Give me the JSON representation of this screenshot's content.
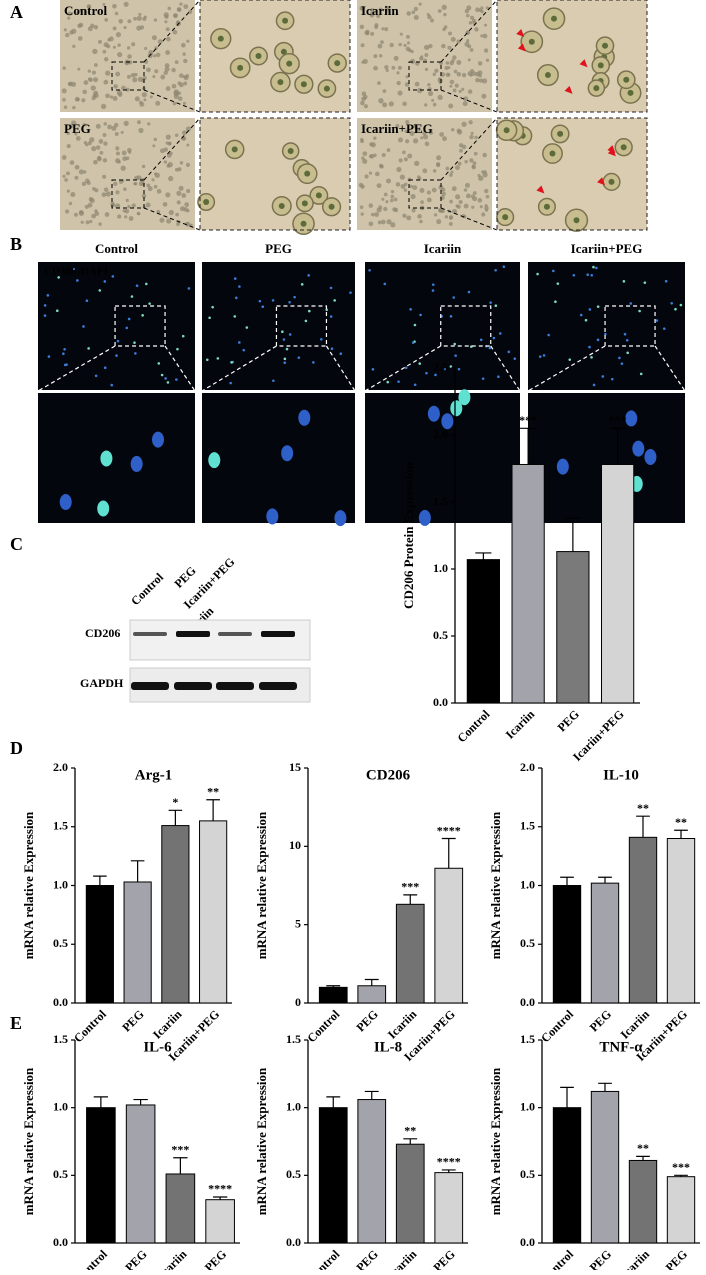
{
  "figure": {
    "panel_labels": [
      "A",
      "B",
      "C",
      "D",
      "E"
    ],
    "panel_a": {
      "labels": [
        "Control",
        "Icariin",
        "PEG",
        "Icariin+PEG"
      ]
    },
    "panel_b": {
      "titles": [
        "Control",
        "PEG",
        "Icariin",
        "Icariin+PEG"
      ],
      "stain": [
        "CD206",
        "/DAPI"
      ]
    },
    "panel_c": {
      "lanes": [
        "Control",
        "PEG",
        "Icariin",
        "Icariin+PEG"
      ],
      "bands": [
        "CD206",
        "GAPDH"
      ]
    }
  },
  "chart_data": [
    {
      "type": "bar",
      "ylabel": "CD206 Protein Expression",
      "categories": [
        "Control",
        "Icariin",
        "PEG",
        "Icariin+PEG"
      ],
      "values": [
        1.07,
        1.78,
        1.13,
        1.78
      ],
      "errors": [
        0.05,
        0.27,
        0.25,
        0.27
      ],
      "annotations": [
        null,
        "***",
        null,
        "***"
      ],
      "colors": [
        "#000000",
        "#a3a3ab",
        "#7a7a7a",
        "#d4d4d4"
      ],
      "ylim": [
        0,
        2.5
      ],
      "yticks": [
        {
          "value": 0,
          "label": "0.0"
        },
        0.5,
        {
          "value": 1,
          "label": "1.0"
        },
        1.5,
        {
          "value": 2,
          "label": "2.0"
        },
        2.5
      ]
    },
    {
      "type": "bar",
      "title": "Arg-1",
      "ylabel": "mRNA relative Expression",
      "categories": [
        "Control",
        "PEG",
        "Icariin",
        "Icariin+PEG"
      ],
      "values": [
        1.0,
        1.03,
        1.51,
        1.55
      ],
      "errors": [
        0.08,
        0.18,
        0.13,
        0.18
      ],
      "annotations": [
        null,
        null,
        "*",
        "**"
      ],
      "colors": [
        "#000000",
        "#a3a3ab",
        "#737373",
        "#d4d4d4"
      ],
      "ylim": [
        0,
        2
      ],
      "yticks": [
        {
          "value": 0,
          "label": "0.0"
        },
        0.5,
        {
          "value": 1,
          "label": "1.0"
        },
        1.5,
        {
          "value": 2,
          "label": "2.0"
        }
      ]
    },
    {
      "type": "bar",
      "title": "CD206",
      "ylabel": "mRNA relative Expression",
      "categories": [
        "Control",
        "PEG",
        "Icariin",
        "Icariin+PEG"
      ],
      "values": [
        1.0,
        1.1,
        6.3,
        8.6
      ],
      "errors": [
        0.1,
        0.4,
        0.6,
        1.9
      ],
      "annotations": [
        null,
        null,
        "***",
        "****"
      ],
      "colors": [
        "#000000",
        "#a3a3ab",
        "#737373",
        "#d4d4d4"
      ],
      "ylim": [
        0,
        15
      ],
      "yticks": [
        0,
        5,
        10,
        15
      ]
    },
    {
      "type": "bar",
      "title": "IL-10",
      "ylabel": "mRNA relative Expression",
      "categories": [
        "Control",
        "PEG",
        "Icariin",
        "Icariin+PEG"
      ],
      "values": [
        1.0,
        1.02,
        1.41,
        1.4
      ],
      "errors": [
        0.07,
        0.05,
        0.18,
        0.07
      ],
      "annotations": [
        null,
        null,
        "**",
        "**"
      ],
      "colors": [
        "#000000",
        "#a3a3ab",
        "#737373",
        "#d4d4d4"
      ],
      "ylim": [
        0,
        2
      ],
      "yticks": [
        {
          "value": 0,
          "label": "0.0"
        },
        0.5,
        {
          "value": 1,
          "label": "1.0"
        },
        1.5,
        {
          "value": 2,
          "label": "2.0"
        }
      ]
    },
    {
      "type": "bar",
      "title": "IL-6",
      "ylabel": "mRNA relative Expression",
      "categories": [
        "Control",
        "PEG",
        "Icariin",
        "Icariin+PEG"
      ],
      "values": [
        1.0,
        1.02,
        0.51,
        0.32
      ],
      "errors": [
        0.08,
        0.04,
        0.12,
        0.02
      ],
      "annotations": [
        null,
        null,
        "***",
        "****"
      ],
      "colors": [
        "#000000",
        "#a3a3ab",
        "#737373",
        "#d4d4d4"
      ],
      "ylim": [
        0,
        1.5
      ],
      "yticks": [
        {
          "value": 0,
          "label": "0.0"
        },
        0.5,
        {
          "value": 1,
          "label": "1.0"
        },
        1.5
      ]
    },
    {
      "type": "bar",
      "title": "IL-8",
      "ylabel": "mRNA relative Expression",
      "categories": [
        "Control",
        "PEG",
        "Icariin",
        "Icariin+PEG"
      ],
      "values": [
        1.0,
        1.06,
        0.73,
        0.52
      ],
      "errors": [
        0.08,
        0.06,
        0.04,
        0.02
      ],
      "annotations": [
        null,
        null,
        "**",
        "****"
      ],
      "colors": [
        "#000000",
        "#a3a3ab",
        "#737373",
        "#d4d4d4"
      ],
      "ylim": [
        0,
        1.5
      ],
      "yticks": [
        {
          "value": 0,
          "label": "0.0"
        },
        0.5,
        {
          "value": 1,
          "label": "1.0"
        },
        1.5
      ]
    },
    {
      "type": "bar",
      "title": "TNF-α",
      "ylabel": "mRNA relative Expression",
      "categories": [
        "Control",
        "PEG",
        "Icariin",
        "Icariin+PEG"
      ],
      "values": [
        1.0,
        1.12,
        0.61,
        0.49
      ],
      "errors": [
        0.15,
        0.06,
        0.03,
        0.01
      ],
      "annotations": [
        null,
        null,
        "**",
        "***"
      ],
      "colors": [
        "#000000",
        "#a3a3ab",
        "#737373",
        "#d4d4d4"
      ],
      "ylim": [
        0,
        1.5
      ],
      "yticks": [
        {
          "value": 0,
          "label": "0.0"
        },
        0.5,
        {
          "value": 1,
          "label": "1.0"
        },
        1.5
      ]
    }
  ]
}
